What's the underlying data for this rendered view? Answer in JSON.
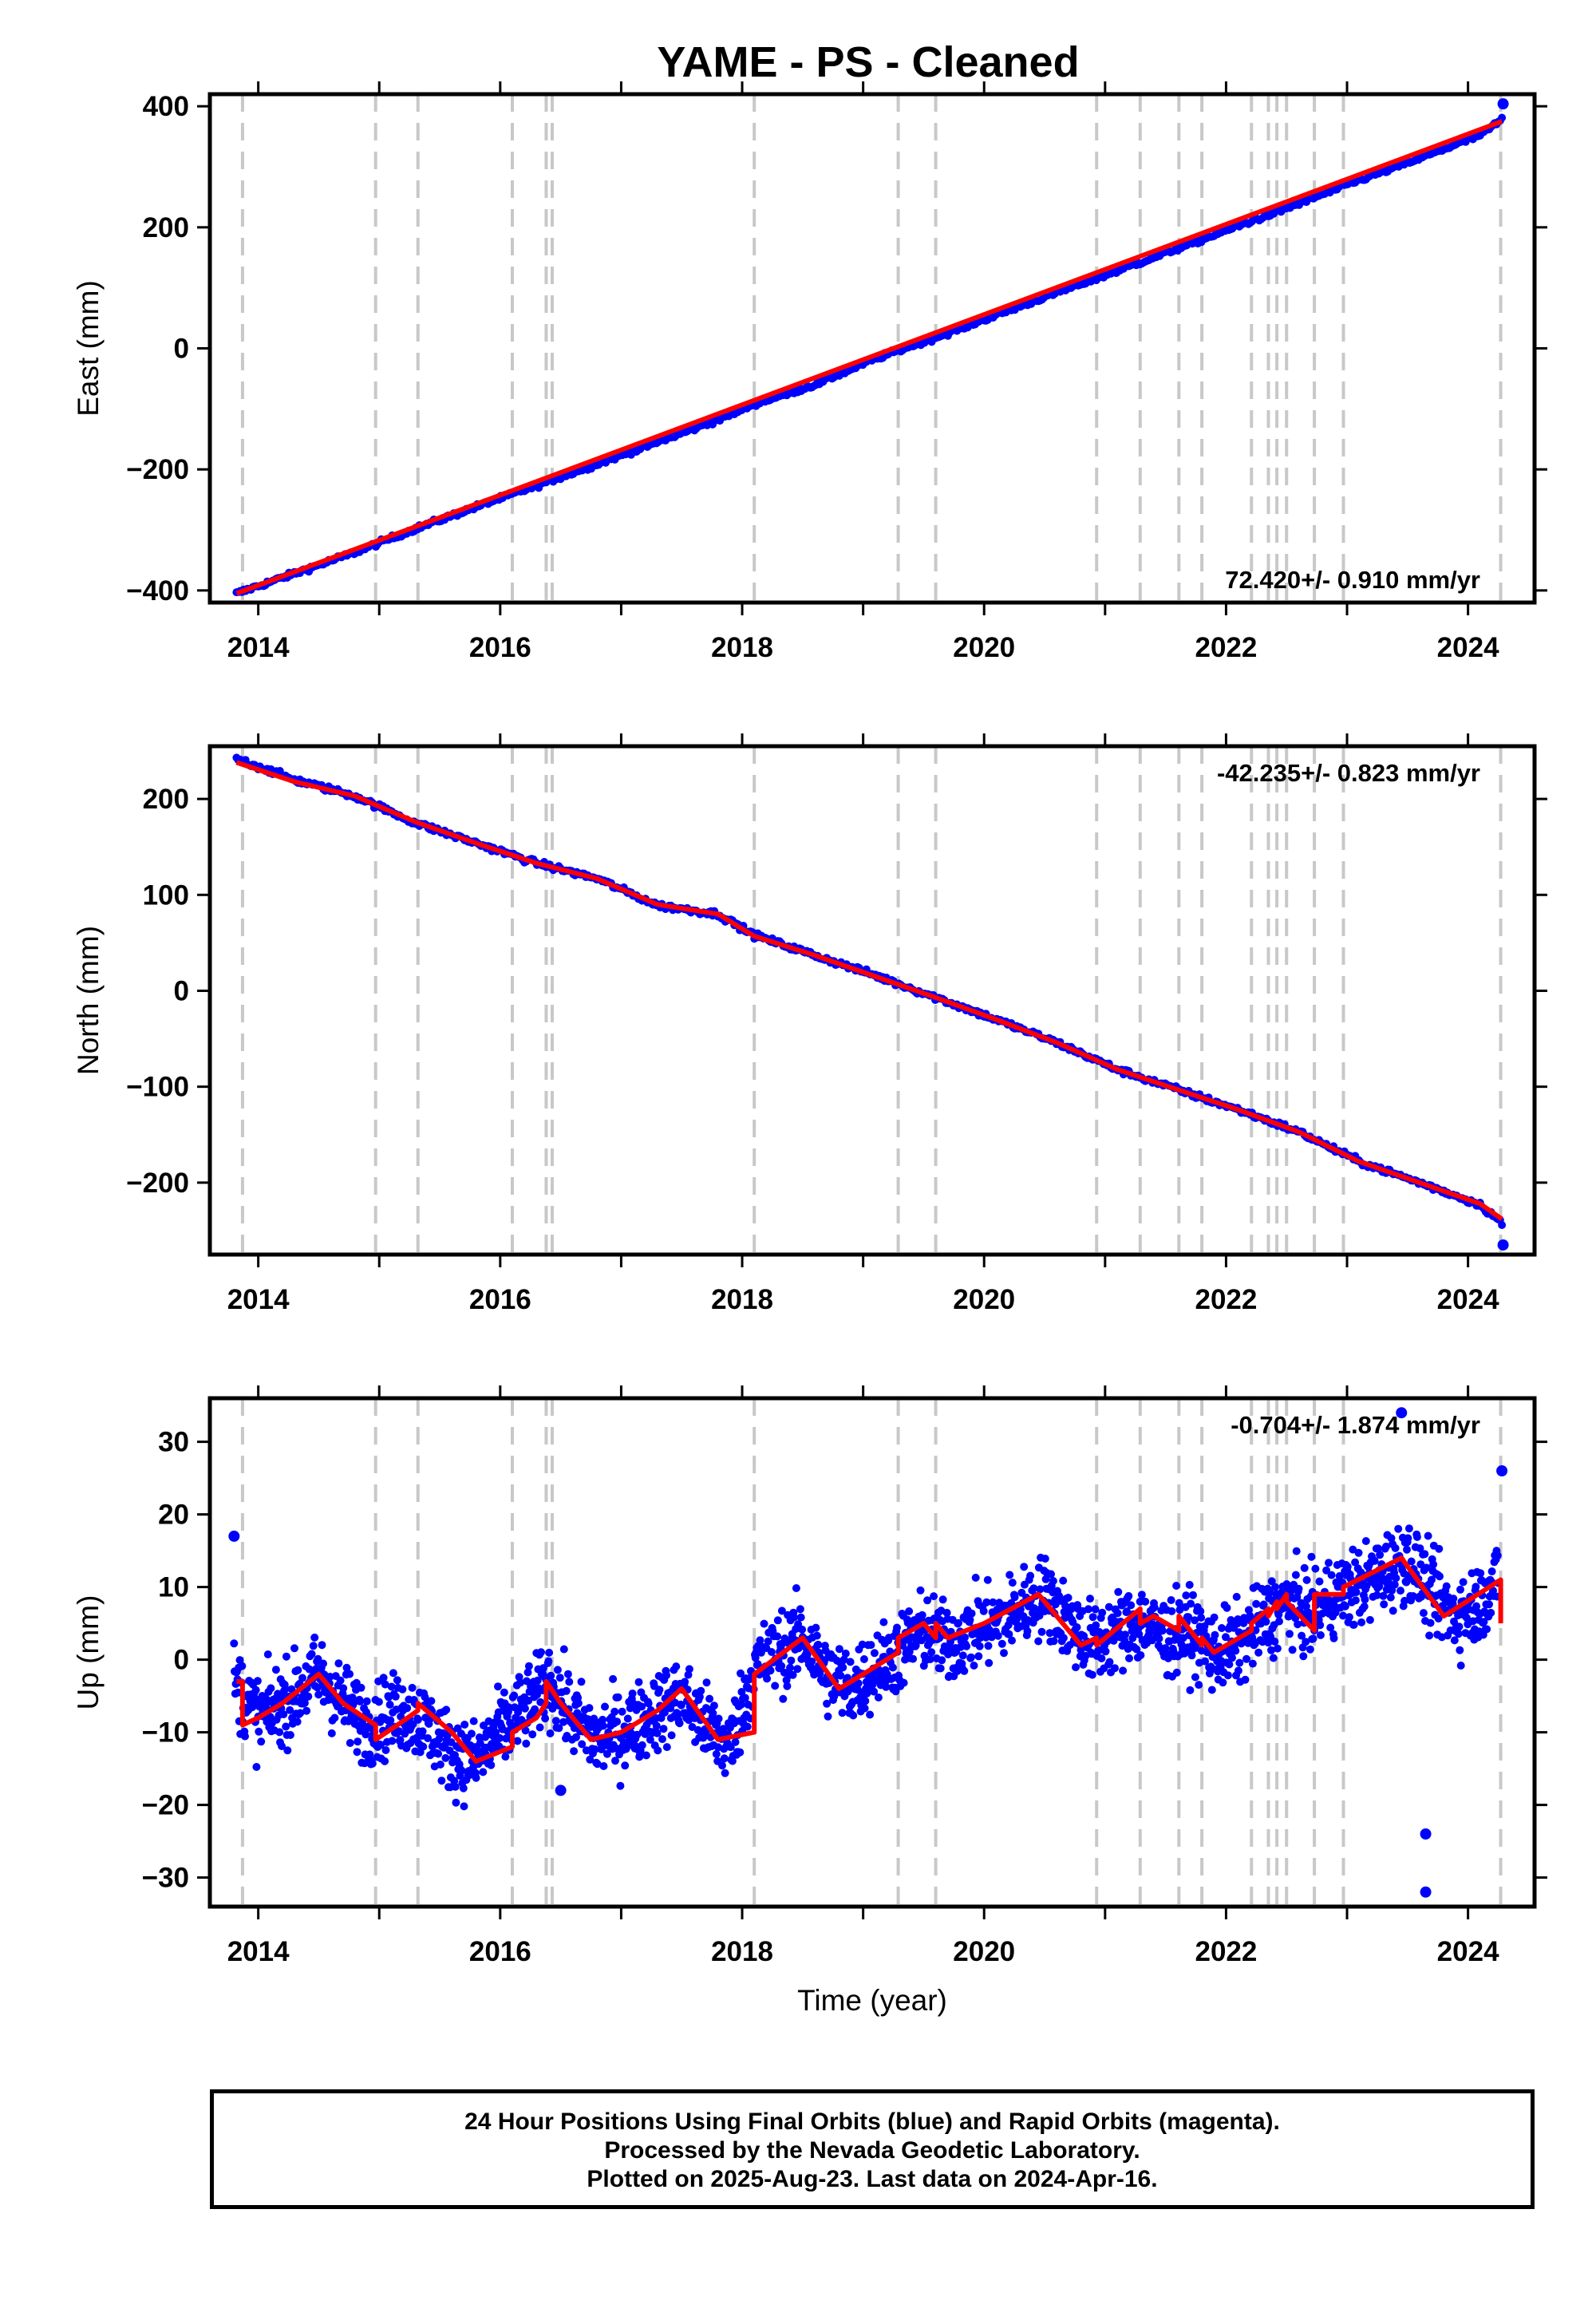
{
  "chart_data": [
    {
      "type": "scatter",
      "title": "YAME  - PS - Cleaned",
      "ylabel": "East (mm)",
      "xlim": [
        2013.6,
        2024.55
      ],
      "ylim": [
        -420,
        420
      ],
      "yticks": [
        -400,
        -200,
        0,
        200,
        400
      ],
      "yticks_labels": [
        "−400",
        "−200",
        "0",
        "200",
        "400"
      ],
      "xticks": [
        2014,
        2016,
        2018,
        2020,
        2022,
        2024
      ],
      "xticks_labels": [
        "2014",
        "2016",
        "2018",
        "2020",
        "2022",
        "2024"
      ],
      "rate_label": "72.420+/- 0.910 mm/yr",
      "series": [
        {
          "color": "#0000ff",
          "style": "points",
          "x": [
            2013.82,
            2014.3,
            2014.8,
            2015.3,
            2015.8,
            2016.3,
            2016.8,
            2017.3,
            2017.8,
            2018.1,
            2018.6,
            2019.1,
            2019.6,
            2020.1,
            2020.6,
            2021.1,
            2021.6,
            2022.1,
            2022.6,
            2023.1,
            2023.6,
            2024.1,
            2024.28
          ],
          "y": [
            -405,
            -372,
            -337,
            -298,
            -262,
            -227,
            -191,
            -155,
            -118,
            -92,
            -60,
            -17,
            18,
            55,
            92,
            128,
            165,
            202,
            239,
            278,
            314,
            352,
            378
          ]
        },
        {
          "color": "#ff0000",
          "style": "line",
          "x": [
            2013.82,
            2024.28
          ],
          "y": [
            -405,
            375
          ]
        }
      ],
      "isolated_points": [
        {
          "x": 2024.29,
          "y": 404
        }
      ],
      "offset_lines": [
        2013.87,
        2014.97,
        2015.32,
        2016.1,
        2016.38,
        2016.43,
        2018.1,
        2019.29,
        2019.6,
        2020.93,
        2021.29,
        2021.61,
        2021.8,
        2022.21,
        2022.35,
        2022.42,
        2022.5,
        2022.73,
        2022.97,
        2024.27
      ]
    },
    {
      "type": "scatter",
      "ylabel": "North (mm)",
      "xlim": [
        2013.6,
        2024.55
      ],
      "ylim": [
        -275,
        255
      ],
      "yticks": [
        -200,
        -100,
        0,
        100,
        200
      ],
      "yticks_labels": [
        "−200",
        "−100",
        "0",
        "100",
        "200"
      ],
      "xticks": [
        2014,
        2016,
        2018,
        2020,
        2022,
        2024
      ],
      "xticks_labels": [
        "2014",
        "2016",
        "2018",
        "2020",
        "2022",
        "2024"
      ],
      "rate_label": "-42.235+/- 0.823 mm/yr",
      "series": [
        {
          "color": "#0000ff",
          "style": "points",
          "x": [
            2013.82,
            2014.3,
            2014.8,
            2015.3,
            2015.8,
            2016.3,
            2016.8,
            2017.3,
            2017.8,
            2018.1,
            2018.6,
            2019.1,
            2019.6,
            2020.1,
            2020.6,
            2021.1,
            2021.6,
            2022.1,
            2022.6,
            2023.1,
            2023.6,
            2024.1,
            2024.28
          ],
          "y": [
            242,
            220,
            203,
            175,
            154,
            133,
            117,
            89,
            80,
            58,
            37,
            16,
            -7,
            -30,
            -54,
            -82,
            -103,
            -124,
            -147,
            -178,
            -200,
            -223,
            -242
          ]
        },
        {
          "color": "#ff0000",
          "style": "line",
          "x": [
            2013.82,
            2014.3,
            2014.8,
            2015.3,
            2015.8,
            2016.3,
            2016.8,
            2017.3,
            2017.8,
            2018.1,
            2018.6,
            2019.1,
            2019.6,
            2020.1,
            2020.6,
            2021.1,
            2021.6,
            2022.1,
            2022.6,
            2023.1,
            2023.6,
            2024.1,
            2024.28
          ],
          "y": [
            238,
            218,
            203,
            176,
            154,
            133,
            117,
            90,
            80,
            57,
            37,
            15,
            -7,
            -30,
            -54,
            -82,
            -103,
            -124,
            -147,
            -178,
            -200,
            -222,
            -238
          ]
        }
      ],
      "isolated_points": [
        {
          "x": 2024.29,
          "y": -265
        }
      ],
      "offset_lines": [
        2013.87,
        2014.97,
        2015.32,
        2016.1,
        2016.38,
        2016.43,
        2018.1,
        2019.29,
        2019.6,
        2020.93,
        2021.29,
        2021.61,
        2021.8,
        2022.21,
        2022.35,
        2022.42,
        2022.5,
        2022.73,
        2022.97,
        2024.27
      ]
    },
    {
      "type": "scatter",
      "xlabel": "Time (year)",
      "ylabel": "Up (mm)",
      "xlim": [
        2013.6,
        2024.55
      ],
      "ylim": [
        -34,
        36
      ],
      "yticks": [
        -30,
        -20,
        -10,
        0,
        10,
        20,
        30
      ],
      "yticks_labels": [
        "−30",
        "−20",
        "−10",
        "0",
        "10",
        "20",
        "30"
      ],
      "xticks": [
        2014,
        2016,
        2018,
        2020,
        2022,
        2024
      ],
      "xticks_labels": [
        "2014",
        "2016",
        "2018",
        "2020",
        "2022",
        "2024"
      ],
      "rate_label": "-0.704+/- 1.874 mm/yr",
      "series": [
        {
          "color": "#0000ff",
          "style": "points",
          "x": [
            2013.8,
            2014.0,
            2014.3,
            2014.5,
            2014.7,
            2014.9,
            2015.2,
            2015.4,
            2015.6,
            2015.8,
            2016.0,
            2016.2,
            2016.4,
            2016.6,
            2016.8,
            2017.0,
            2017.3,
            2017.5,
            2017.7,
            2017.9,
            2018.1,
            2018.3,
            2018.5,
            2018.7,
            2018.9,
            2019.1,
            2019.3,
            2019.5,
            2019.7,
            2019.9,
            2020.1,
            2020.3,
            2020.5,
            2020.7,
            2020.9,
            2021.1,
            2021.3,
            2021.5,
            2021.7,
            2021.9,
            2022.1,
            2022.3,
            2022.5,
            2022.7,
            2022.9,
            2023.1,
            2023.3,
            2023.5,
            2023.7,
            2023.9,
            2024.1,
            2024.25
          ],
          "y": [
            -3,
            -8,
            -5,
            -2,
            -6,
            -9,
            -7,
            -9,
            -13,
            -14,
            -10,
            -7,
            -3,
            -8,
            -11,
            -10,
            -7,
            -5,
            -9,
            -12,
            -1,
            1,
            3,
            -2,
            -4,
            -1,
            1,
            4,
            2,
            4,
            5,
            7,
            9,
            5,
            2,
            4,
            5,
            3,
            4,
            1,
            2,
            5,
            8,
            6,
            9,
            10,
            12,
            14,
            9,
            6,
            8,
            11
          ]
        },
        {
          "color": "#ff0000",
          "style": "line",
          "x": [
            2013.82,
            2013.87,
            2013.87,
            2014.0,
            2014.2,
            2014.5,
            2014.7,
            2014.97,
            2014.97,
            2015.15,
            2015.32,
            2015.32,
            2015.6,
            2015.8,
            2016.1,
            2016.1,
            2016.3,
            2016.38,
            2016.38,
            2016.5,
            2016.75,
            2017.0,
            2017.3,
            2017.5,
            2017.8,
            2018.1,
            2018.1,
            2018.5,
            2018.8,
            2019.0,
            2019.29,
            2019.29,
            2019.5,
            2019.6,
            2019.6,
            2019.7,
            2020.0,
            2020.45,
            2020.8,
            2020.93,
            2020.93,
            2021.29,
            2021.29,
            2021.4,
            2021.61,
            2021.61,
            2021.8,
            2021.8,
            2021.9,
            2022.21,
            2022.21,
            2022.35,
            2022.35,
            2022.42,
            2022.42,
            2022.5,
            2022.5,
            2022.73,
            2022.73,
            2022.97,
            2022.97,
            2023.45,
            2023.8,
            2024.27,
            2024.27
          ],
          "y": [
            -3,
            -3,
            -9,
            -8,
            -6,
            -2,
            -6,
            -9,
            -11,
            -9,
            -7,
            -6,
            -10,
            -14,
            -12,
            -10,
            -8,
            -6,
            -3,
            -6,
            -11,
            -10,
            -7,
            -4,
            -11,
            -10,
            -2,
            3,
            -4,
            -2,
            1,
            3,
            5,
            3,
            5,
            3,
            5,
            9,
            2,
            3,
            2,
            7,
            5,
            6,
            4,
            6,
            2,
            3,
            1,
            4,
            5,
            7,
            6,
            8,
            7,
            9,
            8,
            4,
            9,
            9,
            10,
            14,
            6,
            11,
            5
          ]
        }
      ],
      "isolated_points": [
        {
          "x": 2013.8,
          "y": 17
        },
        {
          "x": 2016.5,
          "y": -18
        },
        {
          "x": 2023.45,
          "y": 34
        },
        {
          "x": 2023.65,
          "y": -24
        },
        {
          "x": 2023.65,
          "y": -32
        },
        {
          "x": 2024.28,
          "y": 26
        }
      ],
      "offset_lines": [
        2013.87,
        2014.97,
        2015.32,
        2016.1,
        2016.38,
        2016.43,
        2018.1,
        2019.29,
        2019.6,
        2020.93,
        2021.29,
        2021.61,
        2021.8,
        2022.21,
        2022.35,
        2022.42,
        2022.5,
        2022.73,
        2022.97,
        2024.27
      ]
    }
  ],
  "footer": {
    "line1": "24 Hour Positions Using Final Orbits (blue) and Rapid Orbits (magenta).",
    "line2": "Processed by the Nevada Geodetic Laboratory.",
    "line3": "Plotted on 2025-Aug-23. Last data on 2024-Apr-16."
  },
  "colors": {
    "points": "#0000ff",
    "fit": "#ff0000",
    "offsets": "#c8c8c8",
    "frame": "#000000"
  }
}
